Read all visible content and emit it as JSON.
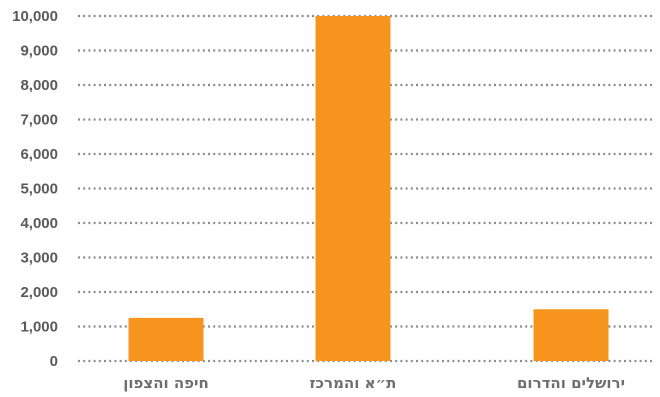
{
  "chart_data": {
    "type": "bar",
    "title": "",
    "xlabel": "",
    "ylabel": "",
    "categories": [
      "ירושלים והדרום",
      "ת״א והמרכז",
      "חיפה והצפון"
    ],
    "values": [
      1500,
      10000,
      1250
    ],
    "ylim": [
      0,
      10000
    ],
    "yticks": [
      0,
      1000,
      2000,
      3000,
      4000,
      5000,
      6000,
      7000,
      8000,
      9000,
      10000
    ],
    "ytick_labels": [
      "0",
      "1,000",
      "2,000",
      "3,000",
      "4,000",
      "5,000",
      "6,000",
      "7,000",
      "8,000",
      "9,000",
      "10,000"
    ],
    "grid": true,
    "grid_style": "dotted",
    "bar_color": "#f7941d",
    "legend": "none"
  }
}
